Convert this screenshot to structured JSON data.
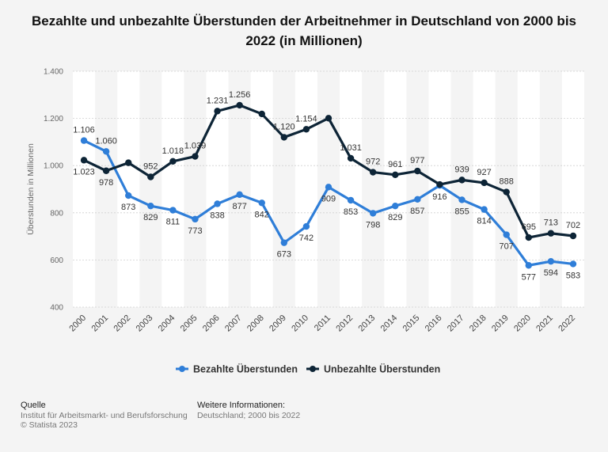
{
  "chart_data": {
    "type": "line",
    "title": "Bezahlte und unbezahlte Überstunden der Arbeitnehmer in Deutschland von 2000 bis 2022 (in Millionen)",
    "xlabel": "",
    "ylabel": "Überstunden in Millionen",
    "ylim": [
      400,
      1400
    ],
    "yticks": [
      400,
      600,
      800,
      1000,
      1200,
      1400
    ],
    "ytick_labels": [
      "400",
      "600",
      "800",
      "1.000",
      "1.200",
      "1.400"
    ],
    "categories": [
      "2000",
      "2001",
      "2002",
      "2003",
      "2004",
      "2005",
      "2006",
      "2007",
      "2008",
      "2009",
      "2010",
      "2011",
      "2012",
      "2013",
      "2014",
      "2015",
      "2016",
      "2017",
      "2018",
      "2019",
      "2020",
      "2021",
      "2022"
    ],
    "series": [
      {
        "name": "Bezahlte Überstunden",
        "color": "#2f7ed8",
        "values": [
          1106,
          1060,
          873,
          829,
          811,
          773,
          838,
          877,
          842,
          673,
          742,
          909,
          853,
          798,
          829,
          857,
          916,
          855,
          814,
          707,
          577,
          594,
          583
        ],
        "labels": [
          "1.106",
          "1.060",
          "873",
          "829",
          "811",
          "773",
          "838",
          "877",
          "842",
          "673",
          "742",
          "909",
          "853",
          "798",
          "829",
          "857",
          "916",
          "855",
          "814",
          "707",
          "577",
          "594",
          "583"
        ]
      },
      {
        "name": "Unbezahlte Überstunden",
        "color": "#0d2436",
        "values": [
          1023,
          978,
          1012,
          952,
          1018,
          1039,
          1231,
          1256,
          1219,
          1120,
          1154,
          1201,
          1031,
          972,
          961,
          977,
          920,
          939,
          927,
          888,
          695,
          713,
          702
        ],
        "labels": [
          "1.023",
          "978",
          "",
          "952",
          "1.018",
          "1.039",
          "1.231",
          "1.256",
          "",
          "1.120",
          "1.154",
          "",
          "1.031",
          "972",
          "961",
          "977",
          "",
          "939",
          "927",
          "888",
          "695",
          "713",
          "702"
        ]
      }
    ],
    "legend_position": "bottom-center",
    "grid": true
  },
  "footer": {
    "source_heading": "Quelle",
    "source_line1": "Institut für Arbeitsmarkt- und Berufsforschung",
    "source_line2": "© Statista 2023",
    "info_heading": "Weitere Informationen:",
    "info_line1": "Deutschland; 2000 bis 2022"
  }
}
